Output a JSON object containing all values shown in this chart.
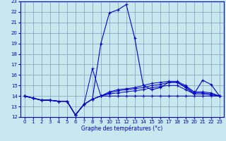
{
  "bg_color": "#c8e8f0",
  "grid_color": "#8899bb",
  "line_color": "#0000cc",
  "xlabel": "Graphe des températures (°c)",
  "x_min": 0,
  "x_max": 23,
  "y_min": 12,
  "y_max": 23,
  "series": [
    [
      14.0,
      13.8,
      13.6,
      13.6,
      13.5,
      13.5,
      12.2,
      13.2,
      13.7,
      19.0,
      21.9,
      22.2,
      22.7,
      19.5,
      15.0,
      14.6,
      14.8,
      15.3,
      15.3,
      14.8,
      14.2,
      15.5,
      15.1,
      14.0
    ],
    [
      14.0,
      13.8,
      13.6,
      13.6,
      13.5,
      13.5,
      12.2,
      13.2,
      16.6,
      14.0,
      14.4,
      14.6,
      14.7,
      14.8,
      15.0,
      15.2,
      15.3,
      15.4,
      15.4,
      15.0,
      14.4,
      14.4,
      14.3,
      14.0
    ],
    [
      14.0,
      13.8,
      13.6,
      13.6,
      13.5,
      13.5,
      12.2,
      13.2,
      13.7,
      14.0,
      14.3,
      14.5,
      14.6,
      14.7,
      14.8,
      15.0,
      15.1,
      15.3,
      15.3,
      14.9,
      14.3,
      14.3,
      14.2,
      14.0
    ],
    [
      14.0,
      13.8,
      13.6,
      13.6,
      13.5,
      13.5,
      12.2,
      13.2,
      13.7,
      14.0,
      14.2,
      14.3,
      14.4,
      14.5,
      14.6,
      14.8,
      14.9,
      15.0,
      15.0,
      14.6,
      14.2,
      14.2,
      14.1,
      14.0
    ],
    [
      14.0,
      13.8,
      13.6,
      13.6,
      13.5,
      13.5,
      12.2,
      13.2,
      13.7,
      14.0,
      14.0,
      14.0,
      14.0,
      14.0,
      14.0,
      14.0,
      14.0,
      14.0,
      14.0,
      14.0,
      14.0,
      14.0,
      14.0,
      14.0
    ]
  ]
}
